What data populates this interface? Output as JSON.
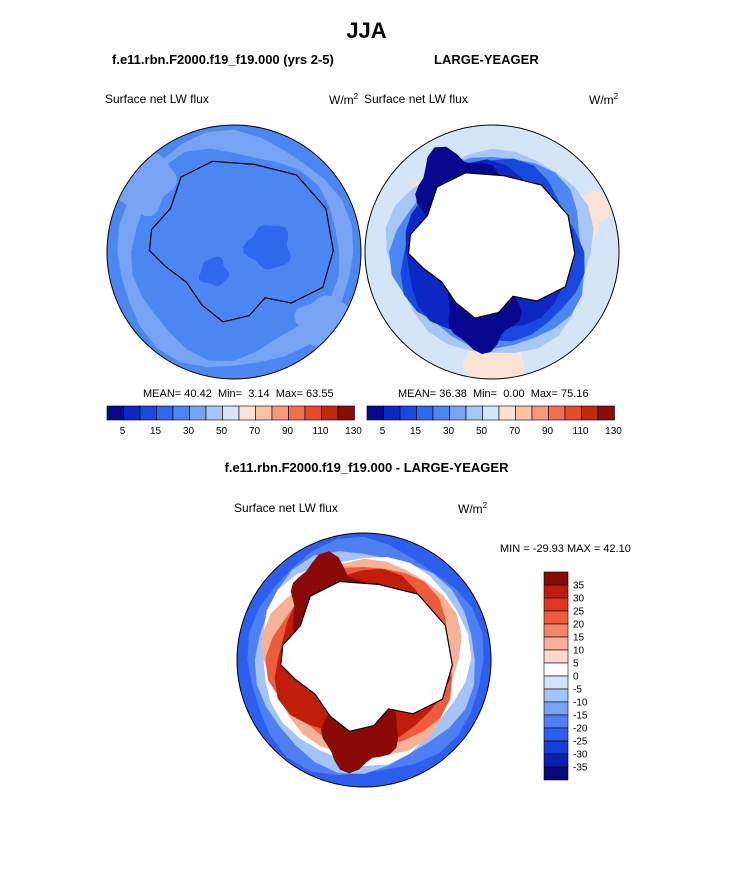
{
  "page": {
    "title": "JJA",
    "case_name": "f.e11.rbn.F2000.f19_f19.000 (yrs 2-5)",
    "obs_name": "LARGE-YEAGER",
    "diff_title": "f.e11.rbn.F2000.f19_f19.000 - LARGE-YEAGER"
  },
  "colors": {
    "map_levels": [
      "#08088e",
      "#0d26c4",
      "#1848e0",
      "#2d69ec",
      "#4c86f0",
      "#76a4f2",
      "#a6c6f5",
      "#d5e5f8",
      "#fbe3d3",
      "#f9c3a6",
      "#f5997a",
      "#f07050",
      "#e84a2a",
      "#c52810",
      "#8c0a08"
    ],
    "diff_levels": [
      "#08087a",
      "#0a22b4",
      "#1540d8",
      "#2c5ef0",
      "#4f80f2",
      "#79a3f5",
      "#a4c3f7",
      "#d2e3fa",
      "#ffffff",
      "#fbd9c8",
      "#f7b196",
      "#f3866a",
      "#ef5c3c",
      "#e0381c",
      "#c01e08",
      "#8a0a06"
    ],
    "land": "#ffffff",
    "coast": "#000000"
  },
  "chart_data": [
    {
      "type": "heatmap",
      "panel": "case",
      "variable": "Surface net LW flux",
      "units_base": "W/m",
      "units_exp": "2",
      "stats": {
        "mean_label": "MEAN=",
        "mean": "40.42",
        "min_label": "Min=",
        "min": "3.14",
        "max_label": "Max=",
        "max": "63.55"
      },
      "levels": [
        5,
        10,
        15,
        20,
        30,
        40,
        50,
        60,
        70,
        80,
        90,
        100,
        110,
        120,
        130
      ],
      "tick_labels": [
        "5",
        "15",
        "30",
        "50",
        "70",
        "90",
        "110",
        "130"
      ]
    },
    {
      "type": "heatmap",
      "panel": "obs",
      "variable": "Surface net LW flux",
      "units_base": "W/m",
      "units_exp": "2",
      "stats": {
        "mean_label": "MEAN=",
        "mean": "36.38",
        "min_label": "Min=",
        "min": "0.00",
        "max_label": "Max=",
        "max": "75.16"
      },
      "levels": [
        5,
        10,
        15,
        20,
        30,
        40,
        50,
        60,
        70,
        80,
        90,
        100,
        110,
        120,
        130
      ],
      "tick_labels": [
        "5",
        "15",
        "30",
        "50",
        "70",
        "90",
        "110",
        "130"
      ]
    },
    {
      "type": "heatmap",
      "panel": "difference",
      "variable": "Surface net LW flux",
      "units_base": "W/m",
      "units_exp": "2",
      "minmax_label": "MIN = -29.93 MAX =  42.10",
      "min": -29.93,
      "max": 42.1,
      "levels": [
        35,
        30,
        25,
        20,
        15,
        10,
        5,
        0,
        -5,
        -10,
        -15,
        -20,
        -25,
        -30,
        -35
      ],
      "tick_labels": [
        "35",
        "30",
        "25",
        "20",
        "15",
        "10",
        "5",
        "0",
        "-5",
        "-10",
        "-15",
        "-20",
        "-25",
        "-30",
        "-35"
      ]
    }
  ]
}
